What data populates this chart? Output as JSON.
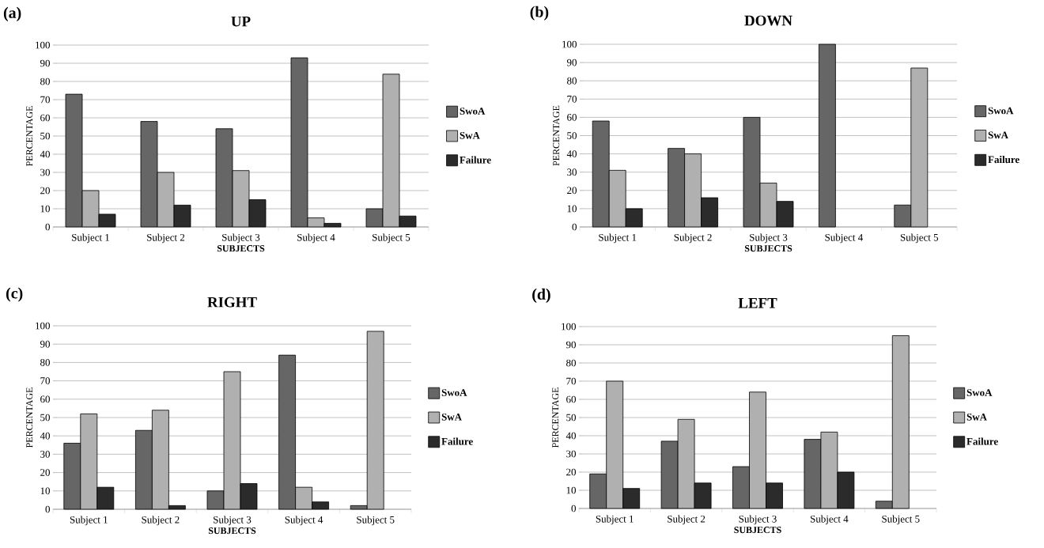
{
  "chart_data": [
    {
      "type": "bar",
      "title": "UP",
      "xlabel": "SUBJECTS",
      "ylabel": "PERCENTAGE",
      "annotations": [
        "(a)"
      ],
      "categories": [
        "Subject 1",
        "Subject 2",
        "Subject 3",
        "Subject 4",
        "Subject 5"
      ],
      "ylim": [
        0,
        100
      ],
      "yticks": [
        0,
        10,
        20,
        30,
        40,
        50,
        60,
        70,
        80,
        90,
        100
      ],
      "grid": "y",
      "legend": "right",
      "series": [
        {
          "name": "SwoA",
          "color": "#666666",
          "values": [
            73,
            58,
            54,
            93,
            10
          ]
        },
        {
          "name": "SwA",
          "color": "#b0b0b0",
          "values": [
            20,
            30,
            31,
            5,
            84
          ]
        },
        {
          "name": "Failure",
          "color": "#2b2b2b",
          "values": [
            7,
            12,
            15,
            2,
            6
          ]
        }
      ]
    },
    {
      "type": "bar",
      "title": "DOWN",
      "xlabel": "SUBJECTS",
      "ylabel": "PERCENTAGE",
      "annotations": [
        "(b)"
      ],
      "categories": [
        "Subject 1",
        "Subject 2",
        "Subject 3",
        "Subject 4",
        "Subject 5"
      ],
      "ylim": [
        0,
        100
      ],
      "yticks": [
        0,
        10,
        20,
        30,
        40,
        50,
        60,
        70,
        80,
        90,
        100
      ],
      "grid": "y",
      "legend": "right",
      "series": [
        {
          "name": "SwoA",
          "color": "#666666",
          "values": [
            58,
            43,
            60,
            100,
            12
          ]
        },
        {
          "name": "SwA",
          "color": "#b0b0b0",
          "values": [
            31,
            40,
            24,
            null,
            87
          ]
        },
        {
          "name": "Failure",
          "color": "#2b2b2b",
          "values": [
            10,
            16,
            14,
            null,
            null
          ]
        }
      ]
    },
    {
      "type": "bar",
      "title": "RIGHT",
      "xlabel": "SUBJECTS",
      "ylabel": "PERCENTAGE",
      "annotations": [
        "(c)"
      ],
      "categories": [
        "Subject 1",
        "Subject 2",
        "Subject 3",
        "Subject 4",
        "Subject 5"
      ],
      "ylim": [
        0,
        100
      ],
      "yticks": [
        0,
        10,
        20,
        30,
        40,
        50,
        60,
        70,
        80,
        90,
        100
      ],
      "grid": "y",
      "legend": "right",
      "series": [
        {
          "name": "SwoA",
          "color": "#666666",
          "values": [
            36,
            43,
            10,
            84,
            2
          ]
        },
        {
          "name": "SwA",
          "color": "#b0b0b0",
          "values": [
            52,
            54,
            75,
            12,
            97
          ]
        },
        {
          "name": "Failure",
          "color": "#2b2b2b",
          "values": [
            12,
            2,
            14,
            4,
            null
          ]
        }
      ]
    },
    {
      "type": "bar",
      "title": "LEFT",
      "xlabel": "SUBJECTS",
      "ylabel": "PERCENTAGE",
      "annotations": [
        "(d)"
      ],
      "categories": [
        "Subject 1",
        "Subject 2",
        "Subject 3",
        "Subject 4",
        "Subject 5"
      ],
      "ylim": [
        0,
        100
      ],
      "yticks": [
        0,
        10,
        20,
        30,
        40,
        50,
        60,
        70,
        80,
        90,
        100
      ],
      "grid": "y",
      "legend": "right",
      "series": [
        {
          "name": "SwoA",
          "color": "#666666",
          "values": [
            19,
            37,
            23,
            38,
            4
          ]
        },
        {
          "name": "SwA",
          "color": "#b0b0b0",
          "values": [
            70,
            49,
            64,
            42,
            95
          ]
        },
        {
          "name": "Failure",
          "color": "#2b2b2b",
          "values": [
            11,
            14,
            14,
            20,
            null
          ]
        }
      ]
    }
  ]
}
